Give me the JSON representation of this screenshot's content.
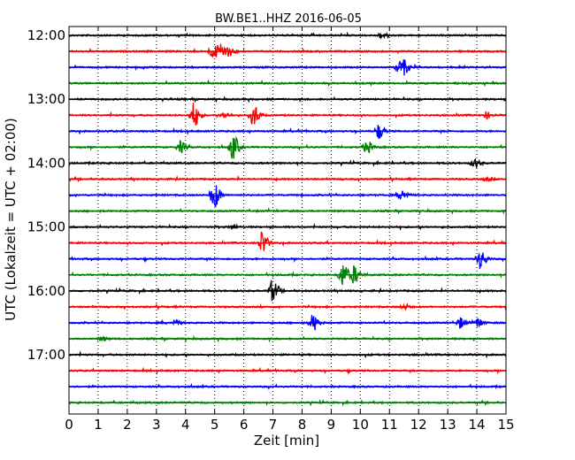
{
  "chart_data": {
    "type": "line",
    "title": "BW.BE1..HHZ 2016-06-05",
    "xlabel": "Zeit  [min]",
    "ylabel": "UTC (Lokalzeit = UTC + 02:00)",
    "xlim": [
      0,
      15
    ],
    "x_ticks": [
      "0",
      "1",
      "2",
      "3",
      "4",
      "5",
      "6",
      "7",
      "8",
      "9",
      "10",
      "11",
      "12",
      "13",
      "14",
      "15"
    ],
    "y_ticks": [
      "12:00",
      "13:00",
      "14:00",
      "15:00",
      "16:00",
      "17:00"
    ],
    "grid": "vertical-dotted",
    "row_interval_min": 15,
    "series_colors": [
      "#000000",
      "#ff0000",
      "#0000ff",
      "#008000"
    ],
    "traces": [
      {
        "name": "12:00",
        "events": [
          {
            "t": 10.7,
            "amp": 0.18
          }
        ]
      },
      {
        "name": "12:15",
        "events": [
          {
            "t": 4.9,
            "amp": 0.45
          },
          {
            "t": 5.2,
            "amp": 0.5
          },
          {
            "t": 5.5,
            "amp": 0.25
          }
        ]
      },
      {
        "name": "12:30",
        "events": [
          {
            "t": 11.3,
            "amp": 0.4
          },
          {
            "t": 11.5,
            "amp": 0.3
          }
        ]
      },
      {
        "name": "12:45",
        "events": []
      },
      {
        "name": "13:00",
        "events": []
      },
      {
        "name": "13:15",
        "events": [
          {
            "t": 4.25,
            "amp": 0.8
          },
          {
            "t": 6.3,
            "amp": 0.75
          },
          {
            "t": 5.3,
            "amp": 0.2
          },
          {
            "t": 14.3,
            "amp": 0.2
          }
        ]
      },
      {
        "name": "13:30",
        "events": [
          {
            "t": 10.6,
            "amp": 0.45
          }
        ]
      },
      {
        "name": "13:45",
        "events": [
          {
            "t": 3.8,
            "amp": 0.35
          },
          {
            "t": 5.6,
            "amp": 0.8
          },
          {
            "t": 10.2,
            "amp": 0.4
          }
        ]
      },
      {
        "name": "14:00",
        "events": [
          {
            "t": 13.9,
            "amp": 0.3
          }
        ]
      },
      {
        "name": "14:15",
        "events": [
          {
            "t": 14.3,
            "amp": 0.12
          }
        ]
      },
      {
        "name": "14:30",
        "events": [
          {
            "t": 4.95,
            "amp": 0.9
          },
          {
            "t": 11.4,
            "amp": 0.35
          }
        ]
      },
      {
        "name": "14:45",
        "events": []
      },
      {
        "name": "15:00",
        "events": [
          {
            "t": 5.6,
            "amp": 0.1
          }
        ]
      },
      {
        "name": "15:15",
        "events": [
          {
            "t": 6.6,
            "amp": 0.75
          }
        ]
      },
      {
        "name": "15:30",
        "events": [
          {
            "t": 14.1,
            "amp": 0.6
          }
        ]
      },
      {
        "name": "15:45",
        "events": [
          {
            "t": 9.35,
            "amp": 0.8
          },
          {
            "t": 9.75,
            "amp": 0.55
          }
        ]
      },
      {
        "name": "16:00",
        "events": [
          {
            "t": 6.95,
            "amp": 0.7
          }
        ]
      },
      {
        "name": "16:15",
        "events": [
          {
            "t": 11.5,
            "amp": 0.15
          }
        ]
      },
      {
        "name": "16:30",
        "events": [
          {
            "t": 8.35,
            "amp": 0.55
          },
          {
            "t": 13.4,
            "amp": 0.35
          },
          {
            "t": 14.0,
            "amp": 0.3
          },
          {
            "t": 3.6,
            "amp": 0.15
          }
        ]
      },
      {
        "name": "16:45",
        "events": [
          {
            "t": 1.1,
            "amp": 0.12
          }
        ]
      },
      {
        "name": "17:00",
        "events": []
      },
      {
        "name": "17:15",
        "events": []
      },
      {
        "name": "17:30",
        "events": []
      },
      {
        "name": "17:45",
        "events": []
      }
    ]
  }
}
